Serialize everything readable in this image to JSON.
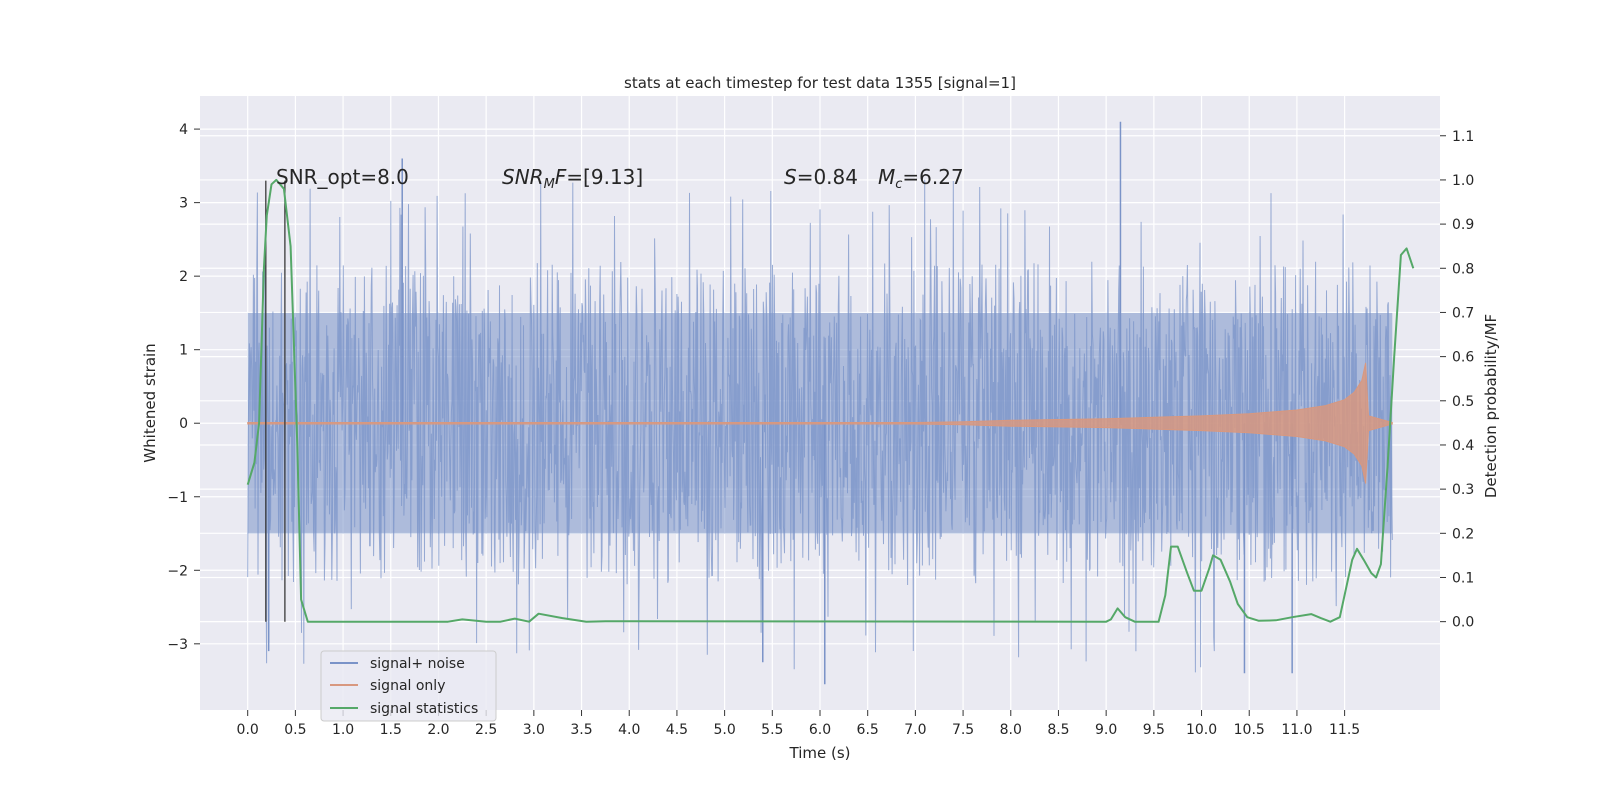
{
  "chart_data": {
    "type": "line",
    "title": "stats at each timestep for test data 1355 [signal=1]",
    "xlabel": "Time (s)",
    "ylabel_left": "Whitened strain",
    "ylabel_right": "Detection probability/MF",
    "xlim": [
      -0.5,
      12.5
    ],
    "ylim_left": [
      -3.9,
      4.45
    ],
    "ylim_right": [
      -0.2,
      1.19
    ],
    "x_ticks": [
      "0.0",
      "0.5",
      "1.0",
      "1.5",
      "2.0",
      "2.5",
      "3.0",
      "3.5",
      "4.0",
      "4.5",
      "5.0",
      "5.5",
      "6.0",
      "6.5",
      "7.0",
      "7.5",
      "8.0",
      "8.5",
      "9.0",
      "9.5",
      "10.0",
      "10.5",
      "11.0",
      "11.5"
    ],
    "y_left_ticks": [
      -3,
      -2,
      -1,
      0,
      1,
      2,
      3,
      4
    ],
    "y_left_tick_labels": [
      "−3",
      "−2",
      "−1",
      "0",
      "1",
      "2",
      "3",
      "4"
    ],
    "y_right_ticks": [
      0.0,
      0.1,
      0.2,
      0.3,
      0.4,
      0.5,
      0.6,
      0.7,
      0.8,
      0.9,
      1.0,
      1.1
    ],
    "y_right_tick_labels": [
      "0.0",
      "0.1",
      "0.2",
      "0.3",
      "0.4",
      "0.5",
      "0.6",
      "0.7",
      "0.8",
      "0.9",
      "1.0",
      "1.1"
    ],
    "grid": true,
    "legend_position": "lower-left",
    "annotations": {
      "snr_opt": "SNR_opt=8.0",
      "snr_mf": "=[9.13]",
      "s": "=0.84",
      "mc": "=6.27"
    },
    "vertical_markers_x": [
      0.19,
      0.39
    ],
    "series": [
      {
        "name": "signal+ noise",
        "color": "#7a93c8",
        "axis": "left",
        "x_range": [
          0.0,
          12.0
        ],
        "core_amplitude": 1.5,
        "notable_peaks": [
          {
            "x": 1.62,
            "y": 3.6
          },
          {
            "x": 9.15,
            "y": 4.1
          },
          {
            "x": 6.05,
            "y": -3.55
          },
          {
            "x": 10.45,
            "y": -3.4
          },
          {
            "x": 10.95,
            "y": -3.4
          },
          {
            "x": 0.22,
            "y": -3.1
          },
          {
            "x": 5.4,
            "y": -3.25
          }
        ]
      },
      {
        "name": "signal only",
        "color": "#d8987f",
        "axis": "left",
        "envelope": [
          {
            "x": 0.0,
            "y": 0.01
          },
          {
            "x": 7.0,
            "y": 0.01
          },
          {
            "x": 7.5,
            "y": 0.02
          },
          {
            "x": 8.0,
            "y": 0.04
          },
          {
            "x": 8.5,
            "y": 0.05
          },
          {
            "x": 9.0,
            "y": 0.06
          },
          {
            "x": 9.5,
            "y": 0.08
          },
          {
            "x": 10.0,
            "y": 0.1
          },
          {
            "x": 10.5,
            "y": 0.13
          },
          {
            "x": 11.0,
            "y": 0.18
          },
          {
            "x": 11.3,
            "y": 0.24
          },
          {
            "x": 11.5,
            "y": 0.32
          },
          {
            "x": 11.6,
            "y": 0.42
          },
          {
            "x": 11.68,
            "y": 0.58
          },
          {
            "x": 11.72,
            "y": 0.82
          },
          {
            "x": 11.75,
            "y": 0.1
          },
          {
            "x": 12.0,
            "y": 0.01
          }
        ]
      },
      {
        "name": "signal statistics",
        "color": "#55a868",
        "axis": "right",
        "points": [
          {
            "x": 0.0,
            "y": 0.31
          },
          {
            "x": 0.07,
            "y": 0.36
          },
          {
            "x": 0.12,
            "y": 0.45
          },
          {
            "x": 0.17,
            "y": 0.8
          },
          {
            "x": 0.2,
            "y": 0.92
          },
          {
            "x": 0.25,
            "y": 0.99
          },
          {
            "x": 0.3,
            "y": 1.0
          },
          {
            "x": 0.38,
            "y": 0.98
          },
          {
            "x": 0.45,
            "y": 0.85
          },
          {
            "x": 0.52,
            "y": 0.4
          },
          {
            "x": 0.56,
            "y": 0.05
          },
          {
            "x": 0.63,
            "y": 0.0
          },
          {
            "x": 2.1,
            "y": 0.0
          },
          {
            "x": 2.25,
            "y": 0.005
          },
          {
            "x": 2.5,
            "y": 0.0
          },
          {
            "x": 2.65,
            "y": 0.0
          },
          {
            "x": 2.8,
            "y": 0.007
          },
          {
            "x": 2.95,
            "y": 0.0
          },
          {
            "x": 3.05,
            "y": 0.018
          },
          {
            "x": 3.3,
            "y": 0.008
          },
          {
            "x": 3.55,
            "y": 0.0
          },
          {
            "x": 3.75,
            "y": 0.001
          },
          {
            "x": 9.0,
            "y": 0.0
          },
          {
            "x": 9.05,
            "y": 0.005
          },
          {
            "x": 9.12,
            "y": 0.03
          },
          {
            "x": 9.2,
            "y": 0.01
          },
          {
            "x": 9.3,
            "y": 0.0
          },
          {
            "x": 9.55,
            "y": 0.0
          },
          {
            "x": 9.62,
            "y": 0.06
          },
          {
            "x": 9.68,
            "y": 0.17
          },
          {
            "x": 9.75,
            "y": 0.17
          },
          {
            "x": 9.85,
            "y": 0.11
          },
          {
            "x": 9.92,
            "y": 0.07
          },
          {
            "x": 10.0,
            "y": 0.07
          },
          {
            "x": 10.08,
            "y": 0.12
          },
          {
            "x": 10.12,
            "y": 0.15
          },
          {
            "x": 10.2,
            "y": 0.14
          },
          {
            "x": 10.3,
            "y": 0.09
          },
          {
            "x": 10.38,
            "y": 0.04
          },
          {
            "x": 10.48,
            "y": 0.01
          },
          {
            "x": 10.6,
            "y": 0.002
          },
          {
            "x": 10.78,
            "y": 0.003
          },
          {
            "x": 10.95,
            "y": 0.01
          },
          {
            "x": 11.15,
            "y": 0.017
          },
          {
            "x": 11.25,
            "y": 0.008
          },
          {
            "x": 11.35,
            "y": 0.0
          },
          {
            "x": 11.45,
            "y": 0.01
          },
          {
            "x": 11.52,
            "y": 0.08
          },
          {
            "x": 11.58,
            "y": 0.14
          },
          {
            "x": 11.63,
            "y": 0.165
          },
          {
            "x": 11.7,
            "y": 0.14
          },
          {
            "x": 11.78,
            "y": 0.11
          },
          {
            "x": 11.83,
            "y": 0.1
          },
          {
            "x": 11.88,
            "y": 0.13
          },
          {
            "x": 11.95,
            "y": 0.35
          },
          {
            "x": 12.02,
            "y": 0.6
          },
          {
            "x": 12.09,
            "y": 0.83
          },
          {
            "x": 12.15,
            "y": 0.845
          },
          {
            "x": 12.22,
            "y": 0.8
          }
        ]
      }
    ]
  }
}
